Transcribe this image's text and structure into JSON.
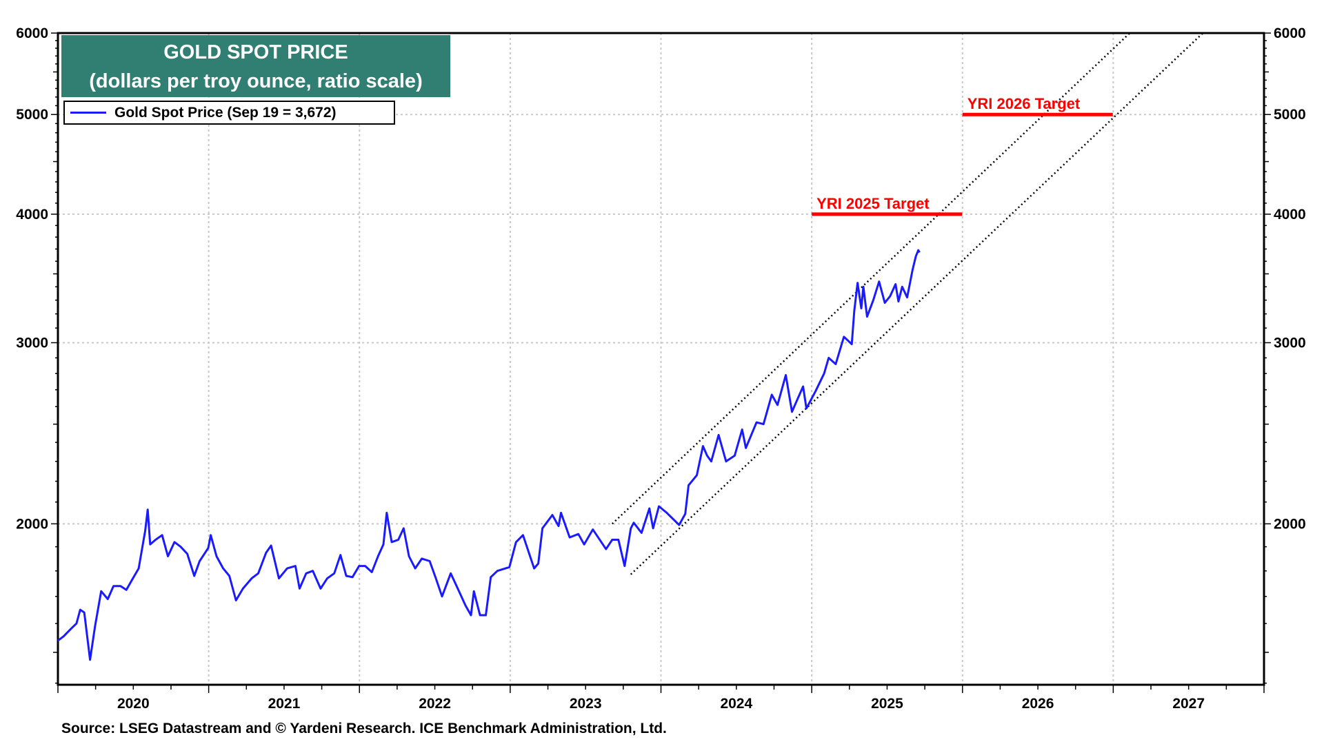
{
  "chart_data": {
    "type": "line",
    "title": "GOLD SPOT PRICE",
    "subtitle": "(dollars per troy ounce, ratio scale)",
    "source": "Source: LSEG Datastream and © Yardeni Research. ICE Benchmark Administration, Ltd.",
    "y_scale": "log",
    "ylim": [
      1395,
      6000
    ],
    "xlim": [
      "2020-01-01",
      "2028-01-01"
    ],
    "y_ticks": [
      2000,
      3000,
      4000,
      5000,
      6000
    ],
    "y_tick_labels": [
      "2000",
      "3000",
      "4000",
      "5000",
      "6000"
    ],
    "x_tick_labels": [
      "2020",
      "2021",
      "2022",
      "2023",
      "2024",
      "2025",
      "2026",
      "2027"
    ],
    "grid": true,
    "legend_position": "top-left",
    "colors": {
      "series": "#1a1aff",
      "target": "#ff0000",
      "title_bg": "#317f72",
      "channel": "#000000"
    },
    "series": [
      {
        "name": "Gold Spot Price (Sep 19 = 3,672)",
        "points": [
          [
            "2020-01-01",
            1540
          ],
          [
            "2020-01-15",
            1555
          ],
          [
            "2020-02-01",
            1580
          ],
          [
            "2020-02-15",
            1600
          ],
          [
            "2020-02-24",
            1650
          ],
          [
            "2020-03-05",
            1640
          ],
          [
            "2020-03-19",
            1475
          ],
          [
            "2020-03-31",
            1590
          ],
          [
            "2020-04-15",
            1720
          ],
          [
            "2020-05-01",
            1690
          ],
          [
            "2020-05-15",
            1740
          ],
          [
            "2020-06-01",
            1740
          ],
          [
            "2020-06-15",
            1725
          ],
          [
            "2020-07-01",
            1770
          ],
          [
            "2020-07-15",
            1810
          ],
          [
            "2020-07-31",
            1970
          ],
          [
            "2020-08-06",
            2065
          ],
          [
            "2020-08-12",
            1910
          ],
          [
            "2020-08-25",
            1930
          ],
          [
            "2020-09-10",
            1950
          ],
          [
            "2020-09-24",
            1860
          ],
          [
            "2020-10-10",
            1920
          ],
          [
            "2020-10-25",
            1900
          ],
          [
            "2020-11-10",
            1870
          ],
          [
            "2020-11-27",
            1780
          ],
          [
            "2020-12-10",
            1840
          ],
          [
            "2020-12-31",
            1895
          ],
          [
            "2021-01-06",
            1950
          ],
          [
            "2021-01-20",
            1860
          ],
          [
            "2021-02-05",
            1810
          ],
          [
            "2021-02-20",
            1780
          ],
          [
            "2021-03-08",
            1685
          ],
          [
            "2021-03-25",
            1730
          ],
          [
            "2021-04-15",
            1770
          ],
          [
            "2021-05-01",
            1790
          ],
          [
            "2021-05-20",
            1875
          ],
          [
            "2021-06-01",
            1905
          ],
          [
            "2021-06-20",
            1770
          ],
          [
            "2021-07-10",
            1810
          ],
          [
            "2021-07-30",
            1820
          ],
          [
            "2021-08-09",
            1730
          ],
          [
            "2021-08-25",
            1790
          ],
          [
            "2021-09-10",
            1800
          ],
          [
            "2021-09-29",
            1730
          ],
          [
            "2021-10-15",
            1770
          ],
          [
            "2021-11-01",
            1790
          ],
          [
            "2021-11-16",
            1865
          ],
          [
            "2021-11-30",
            1780
          ],
          [
            "2021-12-15",
            1775
          ],
          [
            "2021-12-31",
            1820
          ],
          [
            "2022-01-15",
            1820
          ],
          [
            "2022-01-31",
            1795
          ],
          [
            "2022-02-15",
            1860
          ],
          [
            "2022-02-28",
            1910
          ],
          [
            "2022-03-08",
            2050
          ],
          [
            "2022-03-20",
            1920
          ],
          [
            "2022-04-05",
            1930
          ],
          [
            "2022-04-18",
            1980
          ],
          [
            "2022-05-01",
            1860
          ],
          [
            "2022-05-16",
            1810
          ],
          [
            "2022-06-01",
            1850
          ],
          [
            "2022-06-20",
            1840
          ],
          [
            "2022-07-05",
            1770
          ],
          [
            "2022-07-20",
            1700
          ],
          [
            "2022-08-10",
            1790
          ],
          [
            "2022-08-30",
            1720
          ],
          [
            "2022-09-15",
            1665
          ],
          [
            "2022-09-28",
            1630
          ],
          [
            "2022-10-05",
            1720
          ],
          [
            "2022-10-20",
            1630
          ],
          [
            "2022-11-03",
            1630
          ],
          [
            "2022-11-15",
            1775
          ],
          [
            "2022-12-01",
            1800
          ],
          [
            "2022-12-30",
            1815
          ],
          [
            "2023-01-15",
            1920
          ],
          [
            "2023-02-01",
            1950
          ],
          [
            "2023-02-28",
            1810
          ],
          [
            "2023-03-10",
            1830
          ],
          [
            "2023-03-20",
            1980
          ],
          [
            "2023-04-13",
            2040
          ],
          [
            "2023-04-28",
            1990
          ],
          [
            "2023-05-04",
            2050
          ],
          [
            "2023-05-25",
            1940
          ],
          [
            "2023-06-15",
            1955
          ],
          [
            "2023-06-29",
            1910
          ],
          [
            "2023-07-20",
            1975
          ],
          [
            "2023-08-21",
            1890
          ],
          [
            "2023-09-05",
            1930
          ],
          [
            "2023-09-20",
            1930
          ],
          [
            "2023-10-05",
            1820
          ],
          [
            "2023-10-20",
            1980
          ],
          [
            "2023-10-27",
            2005
          ],
          [
            "2023-11-15",
            1960
          ],
          [
            "2023-12-04",
            2070
          ],
          [
            "2023-12-13",
            1980
          ],
          [
            "2023-12-27",
            2080
          ],
          [
            "2024-01-15",
            2050
          ],
          [
            "2024-02-14",
            1995
          ],
          [
            "2024-02-29",
            2045
          ],
          [
            "2024-03-08",
            2180
          ],
          [
            "2024-03-28",
            2230
          ],
          [
            "2024-04-12",
            2380
          ],
          [
            "2024-04-22",
            2330
          ],
          [
            "2024-05-02",
            2300
          ],
          [
            "2024-05-20",
            2440
          ],
          [
            "2024-06-07",
            2300
          ],
          [
            "2024-06-28",
            2330
          ],
          [
            "2024-07-16",
            2470
          ],
          [
            "2024-07-25",
            2370
          ],
          [
            "2024-08-20",
            2510
          ],
          [
            "2024-09-06",
            2500
          ],
          [
            "2024-09-26",
            2670
          ],
          [
            "2024-10-10",
            2610
          ],
          [
            "2024-10-30",
            2790
          ],
          [
            "2024-11-14",
            2570
          ],
          [
            "2024-11-25",
            2630
          ],
          [
            "2024-12-11",
            2720
          ],
          [
            "2024-12-19",
            2590
          ],
          [
            "2025-01-10",
            2690
          ],
          [
            "2025-01-31",
            2800
          ],
          [
            "2025-02-11",
            2900
          ],
          [
            "2025-02-28",
            2860
          ],
          [
            "2025-03-20",
            3040
          ],
          [
            "2025-04-08",
            2990
          ],
          [
            "2025-04-14",
            3220
          ],
          [
            "2025-04-22",
            3430
          ],
          [
            "2025-05-01",
            3240
          ],
          [
            "2025-05-06",
            3400
          ],
          [
            "2025-05-15",
            3180
          ],
          [
            "2025-05-30",
            3300
          ],
          [
            "2025-06-13",
            3440
          ],
          [
            "2025-06-27",
            3280
          ],
          [
            "2025-07-10",
            3330
          ],
          [
            "2025-07-23",
            3420
          ],
          [
            "2025-07-30",
            3290
          ],
          [
            "2025-08-08",
            3400
          ],
          [
            "2025-08-20",
            3320
          ],
          [
            "2025-09-02",
            3530
          ],
          [
            "2025-09-10",
            3640
          ],
          [
            "2025-09-16",
            3690
          ],
          [
            "2025-09-19",
            3672
          ]
        ]
      }
    ],
    "channel_lines": [
      {
        "start": [
          "2023-09-05",
          2000
        ],
        "end": [
          "2027-02-10",
          6000
        ]
      },
      {
        "start": [
          "2023-10-20",
          1786
        ],
        "end": [
          "2027-08-06",
          6000
        ]
      }
    ],
    "targets": [
      {
        "label": "YRI 2025 Target",
        "value": 4000,
        "start": "2025-01-01",
        "end": "2025-12-31"
      },
      {
        "label": "YRI 2026 Target",
        "value": 5000,
        "start": "2026-01-01",
        "end": "2026-12-31"
      }
    ]
  }
}
